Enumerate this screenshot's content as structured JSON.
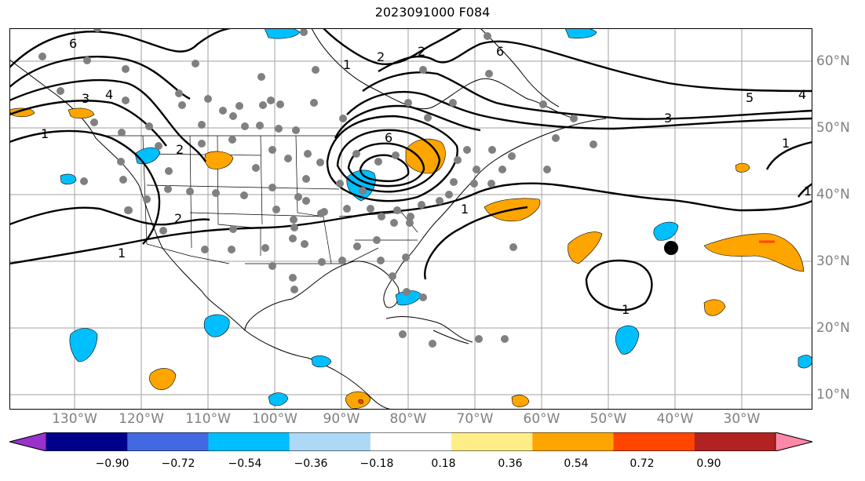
{
  "title": "2023091000 F084",
  "lat_labels": [
    "60°N",
    "50°N",
    "40°N",
    "30°N",
    "20°N",
    "10°N"
  ],
  "lon_labels": [
    "130°W",
    "120°W",
    "110°W",
    "100°W",
    "90°W",
    "80°W",
    "70°W",
    "60°W",
    "50°W",
    "40°W",
    "30°W"
  ],
  "contour_labels": [
    "6",
    "4",
    "3",
    "2",
    "1",
    "1",
    "2",
    "6",
    "5",
    "4",
    "3",
    "2",
    "1",
    "1",
    "2",
    "1",
    "1",
    "1",
    "6"
  ],
  "colorbar": {
    "ticks": [
      "−0.90",
      "−0.72",
      "−0.54",
      "−0.36",
      "−0.18",
      "0.18",
      "0.36",
      "0.54",
      "0.72",
      "0.90"
    ],
    "colors": [
      "#9932cc",
      "#00008b",
      "#4169e1",
      "#00bfff",
      "#add8f6",
      "#ffffff",
      "#ffee88",
      "#ffa500",
      "#ff4500",
      "#b22222",
      "#ff88aa"
    ]
  },
  "fill_colors": {
    "positive_moderate": "#ffa500",
    "positive_strong": "#ff4500",
    "negative_moderate": "#00bfff"
  }
}
